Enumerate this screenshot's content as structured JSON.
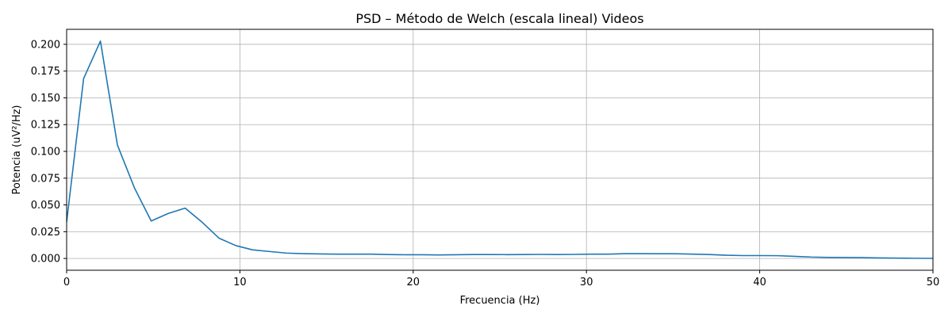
{
  "chart_data": {
    "type": "line",
    "title": "PSD – Método de Welch (escala lineal) Videos",
    "xlabel": "Frecuencia (Hz)",
    "ylabel": "Potencia (uV²/Hz)",
    "xlim": [
      0,
      50
    ],
    "ylim": [
      -0.011,
      0.214
    ],
    "grid": true,
    "xticks": [
      0,
      10,
      20,
      30,
      40,
      50
    ],
    "xtick_labels": [
      "0",
      "10",
      "20",
      "30",
      "40",
      "50"
    ],
    "yticks": [
      0.0,
      0.025,
      0.05,
      0.075,
      0.1,
      0.125,
      0.15,
      0.175,
      0.2
    ],
    "ytick_labels": [
      "0.000",
      "0.025",
      "0.050",
      "0.075",
      "0.100",
      "0.125",
      "0.150",
      "0.175",
      "0.200"
    ],
    "series": [
      {
        "color": "#1f77b4",
        "x": [
          0,
          0.98,
          1.95,
          2.93,
          3.91,
          4.88,
          5.86,
          6.84,
          7.81,
          8.79,
          9.77,
          10.74,
          11.72,
          12.7,
          13.67,
          14.65,
          15.63,
          16.6,
          17.58,
          18.55,
          19.53,
          20.51,
          21.48,
          22.46,
          23.44,
          24.41,
          25.39,
          26.37,
          27.34,
          28.32,
          29.3,
          30.27,
          31.25,
          32.23,
          33.2,
          34.18,
          35.16,
          36.13,
          37.11,
          38.09,
          39.06,
          40.04,
          41.02,
          41.99,
          42.97,
          43.95,
          44.92,
          45.9,
          46.88,
          47.85,
          48.83,
          49.8,
          50
        ],
        "y": [
          0.034,
          0.168,
          0.203,
          0.106,
          0.066,
          0.035,
          0.042,
          0.047,
          0.034,
          0.019,
          0.012,
          0.008,
          0.0065,
          0.005,
          0.0045,
          0.0042,
          0.004,
          0.004,
          0.004,
          0.0037,
          0.0035,
          0.0035,
          0.0033,
          0.0035,
          0.0037,
          0.0037,
          0.0036,
          0.0037,
          0.0038,
          0.0037,
          0.0038,
          0.004,
          0.004,
          0.0045,
          0.0045,
          0.0044,
          0.0044,
          0.004,
          0.0037,
          0.003,
          0.0027,
          0.0027,
          0.0026,
          0.002,
          0.0013,
          0.001,
          0.0009,
          0.0008,
          0.0005,
          0.0003,
          0.0002,
          0.0001,
          0.0001
        ]
      }
    ]
  }
}
